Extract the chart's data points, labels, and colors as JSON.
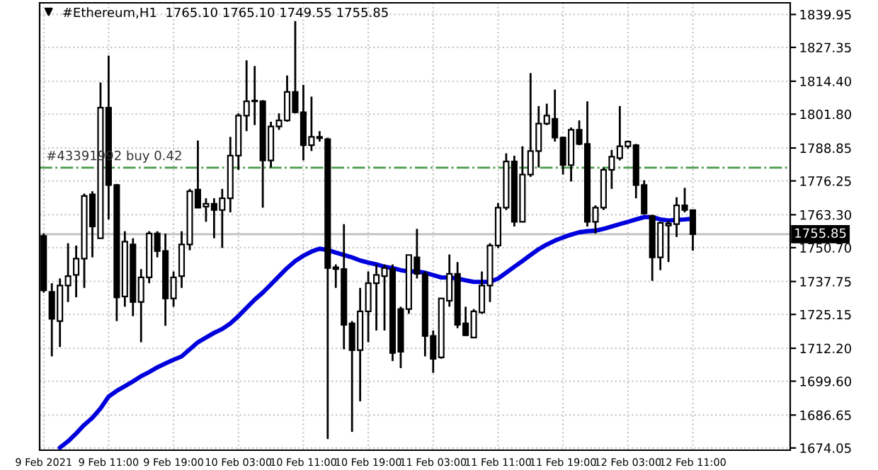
{
  "chart_data": {
    "type": "candlestick",
    "title": "#Ethereum,H1  1765.10 1765.10 1749.55 1755.85",
    "categories": [
      "9 Feb 2021",
      null,
      null,
      null,
      null,
      null,
      null,
      null,
      "9 Feb 11:00",
      null,
      null,
      null,
      null,
      null,
      null,
      null,
      "9 Feb 19:00",
      null,
      null,
      null,
      null,
      null,
      null,
      null,
      "10 Feb 03:00",
      null,
      null,
      null,
      null,
      null,
      null,
      null,
      "10 Feb 11:00",
      null,
      null,
      null,
      null,
      null,
      null,
      null,
      "10 Feb 19:00",
      null,
      null,
      null,
      null,
      null,
      null,
      null,
      "11 Feb 03:00",
      null,
      null,
      null,
      null,
      null,
      null,
      null,
      "11 Feb 11:00",
      null,
      null,
      null,
      null,
      null,
      null,
      null,
      "11 Feb 19:00",
      null,
      null,
      null,
      null,
      null,
      null,
      null,
      "12 Feb 03:00",
      null,
      null,
      null,
      null,
      null,
      null,
      null,
      "12 Feb 11:00"
    ],
    "ohlc": [
      [
        1755.2,
        1756.1,
        1733.5,
        1734.4
      ],
      [
        1733.8,
        1737.1,
        1709.1,
        1723.5
      ],
      [
        1722.6,
        1738.9,
        1712.7,
        1736.2
      ],
      [
        1736.2,
        1752.4,
        1729.9,
        1739.8
      ],
      [
        1740.3,
        1751.5,
        1731.7,
        1746.5
      ],
      [
        1746.5,
        1771.4,
        1735.3,
        1770.5
      ],
      [
        1771.1,
        1772.3,
        1747.0,
        1758.8
      ],
      [
        1754.3,
        1813.9,
        1754.3,
        1804.3
      ],
      [
        1804.3,
        1824.2,
        1761.5,
        1774.7
      ],
      [
        1774.7,
        1775.1,
        1722.6,
        1731.7
      ],
      [
        1732.0,
        1757.0,
        1728.1,
        1753.0
      ],
      [
        1751.9,
        1754.3,
        1724.5,
        1729.9
      ],
      [
        1729.9,
        1742.5,
        1714.5,
        1739.3
      ],
      [
        1739.3,
        1757.0,
        1737.1,
        1756.1
      ],
      [
        1756.1,
        1757.0,
        1747.0,
        1749.4
      ],
      [
        1749.4,
        1756.1,
        1720.8,
        1731.3
      ],
      [
        1731.3,
        1741.6,
        1728.1,
        1739.3
      ],
      [
        1739.8,
        1757.0,
        1735.3,
        1751.9
      ],
      [
        1751.9,
        1773.2,
        1749.7,
        1772.3
      ],
      [
        1772.9,
        1791.7,
        1766.0,
        1766.0
      ],
      [
        1766.4,
        1769.6,
        1760.6,
        1767.5
      ],
      [
        1767.5,
        1769.6,
        1754.3,
        1765.1
      ],
      [
        1765.1,
        1773.2,
        1750.6,
        1769.6
      ],
      [
        1769.6,
        1793.1,
        1764.2,
        1785.9
      ],
      [
        1785.9,
        1802.1,
        1780.5,
        1801.2
      ],
      [
        1801.2,
        1822.4,
        1795.3,
        1806.7
      ],
      [
        1807.0,
        1820.2,
        1797.6,
        1806.7
      ],
      [
        1806.7,
        1807.2,
        1766.0,
        1784.1
      ],
      [
        1784.1,
        1798.9,
        1781.4,
        1797.1
      ],
      [
        1797.1,
        1802.1,
        1795.8,
        1799.4
      ],
      [
        1799.4,
        1816.6,
        1798.9,
        1810.3
      ],
      [
        1810.3,
        1837.4,
        1802.1,
        1802.5
      ],
      [
        1802.5,
        1813.0,
        1784.1,
        1789.9
      ],
      [
        1789.9,
        1808.5,
        1787.7,
        1793.1
      ],
      [
        1793.1,
        1795.3,
        1791.3,
        1792.6
      ],
      [
        1792.2,
        1792.8,
        1677.5,
        1742.9
      ],
      [
        1743.2,
        1744.3,
        1735.3,
        1742.5
      ],
      [
        1742.5,
        1759.7,
        1711.8,
        1721.2
      ],
      [
        1721.7,
        1722.6,
        1680.2,
        1711.5
      ],
      [
        1711.5,
        1735.3,
        1691.9,
        1726.3
      ],
      [
        1726.3,
        1741.6,
        1714.5,
        1737.1
      ],
      [
        1737.1,
        1744.3,
        1719.0,
        1740.3
      ],
      [
        1739.8,
        1744.3,
        1719.0,
        1742.9
      ],
      [
        1742.5,
        1744.3,
        1707.3,
        1710.4
      ],
      [
        1727.2,
        1728.1,
        1704.6,
        1710.9
      ],
      [
        1727.2,
        1747.9,
        1725.4,
        1747.9
      ],
      [
        1747.0,
        1757.9,
        1738.9,
        1740.7
      ],
      [
        1740.7,
        1741.6,
        1709.1,
        1716.9
      ],
      [
        1716.9,
        1719.0,
        1702.8,
        1708.2
      ],
      [
        1708.7,
        1731.3,
        1708.2,
        1731.3
      ],
      [
        1730.4,
        1748.1,
        1728.1,
        1740.7
      ],
      [
        1740.7,
        1745.2,
        1719.9,
        1721.2
      ],
      [
        1721.7,
        1728.1,
        1716.9,
        1717.2
      ],
      [
        1716.3,
        1727.2,
        1716.3,
        1726.3
      ],
      [
        1725.9,
        1741.6,
        1725.4,
        1736.2
      ],
      [
        1736.2,
        1752.4,
        1729.9,
        1751.5
      ],
      [
        1751.5,
        1767.8,
        1750.6,
        1766.0
      ],
      [
        1766.0,
        1786.8,
        1765.1,
        1783.7
      ],
      [
        1783.7,
        1785.9,
        1758.8,
        1760.6
      ],
      [
        1760.6,
        1789.5,
        1760.6,
        1778.7
      ],
      [
        1778.7,
        1817.5,
        1777.8,
        1787.7
      ],
      [
        1787.7,
        1804.9,
        1781.4,
        1798.2
      ],
      [
        1798.2,
        1805.8,
        1797.6,
        1801.2
      ],
      [
        1800.0,
        1811.2,
        1791.3,
        1792.8
      ],
      [
        1792.8,
        1793.1,
        1778.7,
        1782.3
      ],
      [
        1782.3,
        1796.7,
        1776.0,
        1795.8
      ],
      [
        1795.8,
        1799.4,
        1789.9,
        1790.4
      ],
      [
        1790.4,
        1806.7,
        1758.8,
        1760.6
      ],
      [
        1760.6,
        1766.9,
        1756.1,
        1766.0
      ],
      [
        1766.0,
        1781.4,
        1765.1,
        1780.5
      ],
      [
        1780.5,
        1788.1,
        1773.2,
        1785.5
      ],
      [
        1785.0,
        1804.9,
        1784.1,
        1789.5
      ],
      [
        1789.5,
        1791.7,
        1788.6,
        1791.3
      ],
      [
        1789.9,
        1790.4,
        1769.6,
        1774.7
      ],
      [
        1774.7,
        1776.5,
        1763.3,
        1763.8
      ],
      [
        1762.8,
        1763.3,
        1738.0,
        1747.0
      ],
      [
        1747.0,
        1760.6,
        1742.1,
        1760.2
      ],
      [
        1759.2,
        1761.0,
        1745.2,
        1759.9
      ],
      [
        1759.7,
        1770.0,
        1754.8,
        1766.9
      ],
      [
        1766.9,
        1773.6,
        1764.2,
        1765.1
      ],
      [
        1765.1,
        1765.1,
        1749.55,
        1755.85
      ]
    ],
    "series": [
      {
        "type": "line",
        "color": "#0000dd",
        "values": [
          null,
          null,
          1674.2,
          1676.6,
          1679.6,
          1682.9,
          1685.6,
          1689.2,
          1693.7,
          1695.9,
          1697.7,
          1699.5,
          1701.5,
          1703.1,
          1704.9,
          1706.4,
          1707.8,
          1709.1,
          1711.8,
          1714.5,
          1716.3,
          1718.1,
          1719.6,
          1721.7,
          1724.5,
          1727.7,
          1730.8,
          1733.5,
          1736.6,
          1739.8,
          1742.9,
          1745.6,
          1747.6,
          1749.2,
          1750.3,
          1749.8,
          1748.8,
          1747.9,
          1747.0,
          1745.8,
          1745.0,
          1744.3,
          1743.4,
          1742.9,
          1742.1,
          1741.6,
          1741.6,
          1741.1,
          1740.2,
          1739.3,
          1739.3,
          1738.9,
          1738.2,
          1737.6,
          1737.6,
          1737.6,
          1738.9,
          1741.1,
          1743.4,
          1745.6,
          1747.9,
          1750.1,
          1751.9,
          1753.4,
          1754.6,
          1755.7,
          1756.6,
          1757.0,
          1757.2,
          1757.9,
          1758.8,
          1759.7,
          1760.6,
          1761.5,
          1762.4,
          1762.4,
          1761.5,
          1761.1,
          1761.3,
          1761.5,
          1761.8
        ]
      }
    ],
    "ylim": [
      1673.2,
      1844.4
    ],
    "yticks": [
      {
        "value": 1839.95,
        "label": "1839.95"
      },
      {
        "value": 1827.35,
        "label": "1827.35"
      },
      {
        "value": 1814.4,
        "label": "1814.40"
      },
      {
        "value": 1801.8,
        "label": "1801.80"
      },
      {
        "value": 1788.85,
        "label": "1788.85"
      },
      {
        "value": 1776.25,
        "label": "1776.25"
      },
      {
        "value": 1763.3,
        "label": "1763.30"
      },
      {
        "value": 1750.7,
        "label": "1750.70"
      },
      {
        "value": 1737.75,
        "label": "1737.75"
      },
      {
        "value": 1725.15,
        "label": "1725.15"
      },
      {
        "value": 1712.2,
        "label": "1712.20"
      },
      {
        "value": 1699.6,
        "label": "1699.60"
      },
      {
        "value": 1686.65,
        "label": "1686.65"
      },
      {
        "value": 1674.05,
        "label": "1674.05"
      }
    ],
    "ref_lines": [
      {
        "axis": "y",
        "value": 1781.3,
        "label": "#43391992 buy 0.42",
        "color": "#4c9a4c",
        "line_style": "dashdot"
      },
      {
        "axis": "y",
        "value": 1755.85,
        "label": "1755.85",
        "color": "#c0c0c0",
        "line_style": "solid"
      }
    ],
    "grid": true
  }
}
